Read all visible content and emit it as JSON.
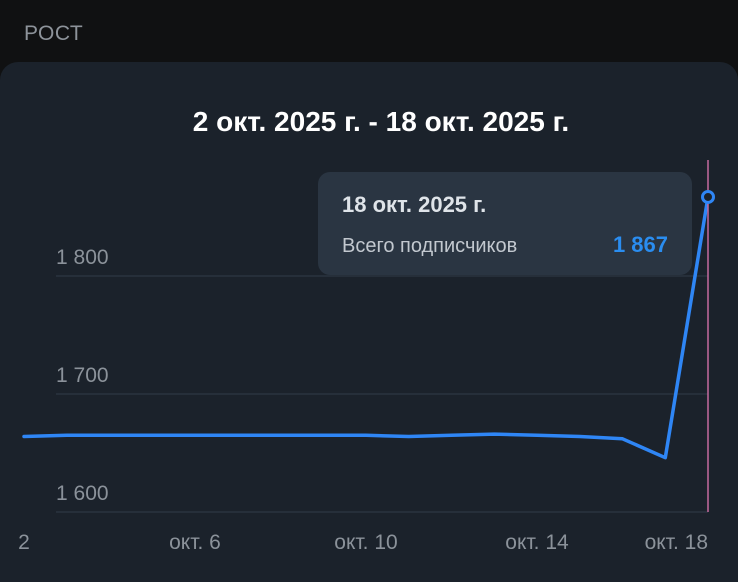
{
  "section": {
    "label": "РОСТ"
  },
  "chart_data": {
    "type": "line",
    "title": "2 окт. 2025 г. - 18 окт. 2025 г.",
    "xlabel": "",
    "ylabel": "",
    "x": [
      "2025-10-02",
      "2025-10-03",
      "2025-10-04",
      "2025-10-05",
      "2025-10-06",
      "2025-10-07",
      "2025-10-08",
      "2025-10-09",
      "2025-10-10",
      "2025-10-11",
      "2025-10-12",
      "2025-10-13",
      "2025-10-14",
      "2025-10-15",
      "2025-10-16",
      "2025-10-17",
      "2025-10-18"
    ],
    "series": [
      {
        "values": [
          1664,
          1665,
          1665,
          1665,
          1665,
          1665,
          1665,
          1665,
          1665,
          1664,
          1665,
          1666,
          1665,
          1664,
          1662,
          1646,
          1867
        ],
        "color": "#2f86f5"
      }
    ],
    "x_tick_labels": [
      {
        "date": "2025-10-02",
        "label": "2"
      },
      {
        "date": "2025-10-06",
        "label": "окт. 6"
      },
      {
        "date": "2025-10-10",
        "label": "окт. 10"
      },
      {
        "date": "2025-10-14",
        "label": "окт. 14"
      },
      {
        "date": "2025-10-18",
        "label": "окт. 18"
      }
    ],
    "y_ticks": [
      {
        "value": 1600,
        "label": "1 600"
      },
      {
        "value": 1700,
        "label": "1 700"
      },
      {
        "value": 1800,
        "label": "1 800"
      }
    ],
    "ylim": [
      1600,
      1880
    ],
    "grid": true,
    "legend": "none",
    "highlight": {
      "date": "2025-10-18",
      "tooltip_date": "18 окт. 2025 г.",
      "tooltip_label": "Всего подписчиков",
      "tooltip_value": "1 867",
      "marker_color": "#c56ba0"
    }
  }
}
